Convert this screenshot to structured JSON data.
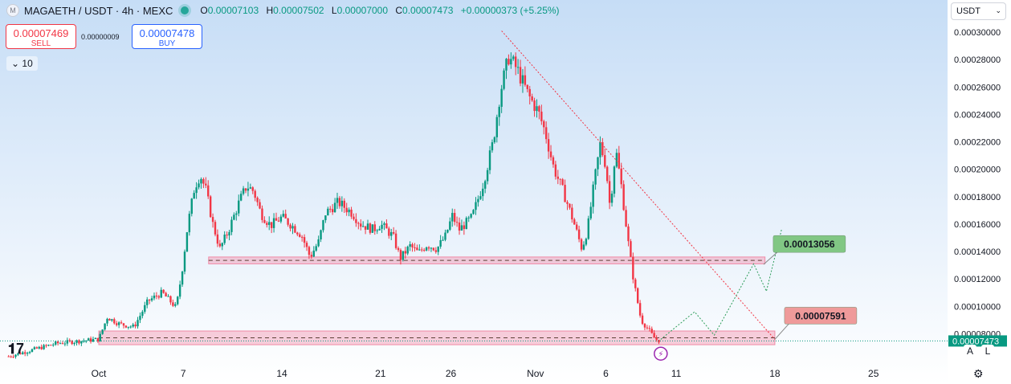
{
  "legend": {
    "symbol": "MAGAETH / USDT · 4h · MEXC",
    "logo_icon": "M",
    "o_label": "O",
    "o_value": "0.00007103",
    "h_label": "H",
    "h_value": "0.00007502",
    "l_label": "L",
    "l_value": "0.00007000",
    "c_label": "C",
    "c_value": "0.00007473",
    "change": "+0.00000373 (+5.25%)"
  },
  "trade": {
    "sell_price": "0.00007469",
    "sell_label": "SELL",
    "spread": "0.00000009",
    "buy_price": "0.00007478",
    "buy_label": "BUY"
  },
  "indicator": {
    "label": "10"
  },
  "currency": "USDT",
  "colors": {
    "up": "#089981",
    "down": "#f23645",
    "zone": "#f2a2b8",
    "bg_top": "#c6ddf6",
    "bg_bottom": "#ffffff"
  },
  "chart_data": {
    "type": "candlestick",
    "ylim": [
      6.15e-05,
      0.000303
    ],
    "y_ticks": [
      "0.00030000",
      "0.00028000",
      "0.00026000",
      "0.00024000",
      "0.00022000",
      "0.00020000",
      "0.00018000",
      "0.00016000",
      "0.00014000",
      "0.00012000",
      "0.00010000",
      "0.00008000"
    ],
    "x_ticks": [
      {
        "label": "Oct",
        "day": 0
      },
      {
        "label": "7",
        "day": 6
      },
      {
        "label": "14",
        "day": 13
      },
      {
        "label": "21",
        "day": 20
      },
      {
        "label": "26",
        "day": 25
      },
      {
        "label": "Nov",
        "day": 31
      },
      {
        "label": "6",
        "day": 36
      },
      {
        "label": "11",
        "day": 41
      },
      {
        "label": "18",
        "day": 48
      },
      {
        "label": "25",
        "day": 55
      }
    ],
    "close_path": [
      [
        -6.4,
        6.35e-05
      ],
      [
        -3,
        7.3e-05
      ],
      [
        0,
        7.6e-05
      ],
      [
        0.6,
        9.2e-05
      ],
      [
        1.5,
        8.7e-05
      ],
      [
        2.5,
        8.5e-05
      ],
      [
        3.5,
        0.000104
      ],
      [
        4.5,
        0.00011
      ],
      [
        5.5,
        9.9e-05
      ],
      [
        5.9,
        0.000125
      ],
      [
        6.3,
        0.000158
      ],
      [
        6.8,
        0.000187
      ],
      [
        7.2,
        0.000196
      ],
      [
        7.6,
        0.000185
      ],
      [
        8.1,
        0.00016
      ],
      [
        8.6,
        0.000142
      ],
      [
        9.2,
        0.000155
      ],
      [
        10,
        0.000177
      ],
      [
        10.5,
        0.000188
      ],
      [
        11,
        0.000184
      ],
      [
        11.5,
        0.000168
      ],
      [
        12.2,
        0.000159
      ],
      [
        13,
        0.000165
      ],
      [
        13.6,
        0.00016
      ],
      [
        14.4,
        0.000152
      ],
      [
        15,
        0.000136
      ],
      [
        15.6,
        0.000147
      ],
      [
        16.1,
        0.000168
      ],
      [
        17,
        0.000176
      ],
      [
        18,
        0.000168
      ],
      [
        18.6,
        0.00016
      ],
      [
        19.5,
        0.000156
      ],
      [
        20,
        0.00016
      ],
      [
        20.9,
        0.000151
      ],
      [
        21.4,
        0.000135
      ],
      [
        22.1,
        0.000144
      ],
      [
        22.7,
        0.000139
      ],
      [
        23.3,
        0.000145
      ],
      [
        24,
        0.000142
      ],
      [
        24.6,
        0.000151
      ],
      [
        25.1,
        0.000166
      ],
      [
        25.6,
        0.000156
      ],
      [
        26.5,
        0.000165
      ],
      [
        27.3,
        0.00019
      ],
      [
        28,
        0.00022
      ],
      [
        28.5,
        0.000256
      ],
      [
        29.1,
        0.000282
      ],
      [
        29.7,
        0.000273
      ],
      [
        30.5,
        0.000254
      ],
      [
        31.2,
        0.000242
      ],
      [
        31.7,
        0.000227
      ],
      [
        32.3,
        0.000201
      ],
      [
        33,
        0.000183
      ],
      [
        33.7,
        0.000162
      ],
      [
        34.3,
        0.000142
      ],
      [
        34.7,
        0.000156
      ],
      [
        35.2,
        0.000192
      ],
      [
        35.6,
        0.000218
      ],
      [
        36,
        0.000203
      ],
      [
        36.3,
        0.000172
      ],
      [
        36.7,
        0.000215
      ],
      [
        37.1,
        0.000188
      ],
      [
        37.6,
        0.000146
      ],
      [
        38,
        0.000117
      ],
      [
        38.5,
        9e-05
      ],
      [
        39.1,
        8.2e-05
      ],
      [
        39.5,
        7.6e-05
      ],
      [
        39.9,
        7.47e-05
      ]
    ],
    "zones": [
      {
        "y_low": 0.000131,
        "y_high": 0.000136,
        "day_start": 7.8,
        "day_end": 47.3
      },
      {
        "y_low": 7.2e-05,
        "y_high": 8.2e-05,
        "day_start": 0,
        "day_end": 48
      }
    ],
    "trendline": [
      [
        28.6,
        0.000301
      ],
      [
        48,
        7.59e-05
      ]
    ],
    "projection_path": [
      [
        39.9,
        7.59e-05
      ],
      [
        42.3,
        9.6e-05
      ],
      [
        43.7,
        7.9e-05
      ],
      [
        46.5,
        0.000131
      ],
      [
        47.4,
        0.000111
      ],
      [
        48.5,
        0.000157
      ]
    ],
    "labels": [
      {
        "text": "0.00013056",
        "day": 47.2,
        "y": 0.00013056,
        "color": "#81c784"
      },
      {
        "text": "0.00007591",
        "day": 48.0,
        "y": 7.591e-05,
        "color": "#ef9a9a"
      }
    ],
    "last_price": "0.00007473"
  }
}
